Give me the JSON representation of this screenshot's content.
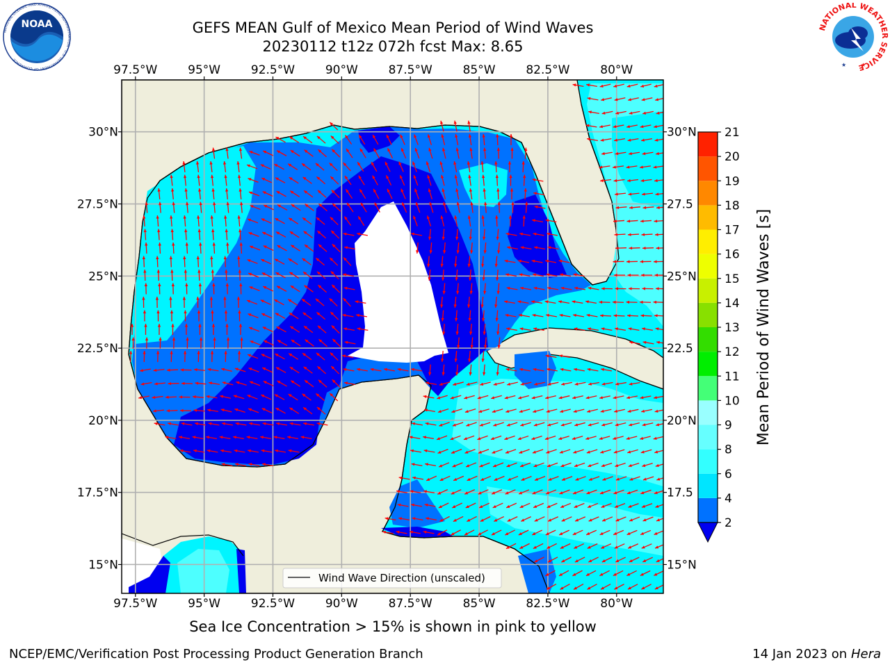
{
  "header": {
    "title_line1": "GEFS MEAN Gulf of Mexico Mean Period of Wind Waves",
    "title_line2": "20230112 t12z 072h fcst   Max: 8.65"
  },
  "logos": {
    "left": "noaa-logo",
    "right": "nws-logo",
    "left_text": "NOAA",
    "left_ring_text": "NATIONAL OCEANIC AND ATMOSPHERIC ADMINISTRATION · U.S. DEPARTMENT OF COMMERCE",
    "right_ring_text": "NATIONAL WEATHER SERVICE"
  },
  "map": {
    "lon_labels": [
      "97.5°W",
      "95°W",
      "92.5°W",
      "90°W",
      "87.5°W",
      "85°W",
      "82.5°W",
      "80°W"
    ],
    "lat_labels": [
      "30°N",
      "27.5°N",
      "25°N",
      "22.5°N",
      "20°N",
      "17.5°N",
      "15°N"
    ],
    "lat_labels_right": [
      "30°N",
      "27.5",
      "25°N",
      "22.5",
      "20°N",
      "17.5",
      "15°N"
    ],
    "lon_range": [
      -98.0,
      -78.3
    ],
    "lat_range": [
      14.0,
      31.8
    ],
    "legend_label": "Wind Wave Direction (unscaled)"
  },
  "colorbar": {
    "label": "Mean Period of Wind Waves [s]",
    "ticks": [
      "2",
      "4",
      "6",
      "8",
      "9",
      "10",
      "11",
      "12",
      "13",
      "14",
      "15",
      "16",
      "17",
      "18",
      "19",
      "20",
      "21"
    ],
    "colors": [
      "#0072ff",
      "#00e5ff",
      "#33ffff",
      "#66ffff",
      "#99ffff",
      "#44ff77",
      "#00ee00",
      "#33dd00",
      "#88e000",
      "#c8f000",
      "#eeff00",
      "#ffee00",
      "#ffbb00",
      "#ff8800",
      "#ff5500",
      "#ff2200",
      "#ff0000"
    ],
    "under_color": "#0000f0"
  },
  "colors": {
    "land": "#efeedc",
    "period_2_4": "#0072ff",
    "period_under": "#0000f0",
    "period_4_6": "#00f5ff",
    "period_6_8": "#4dffff",
    "arrow": "#ff0000"
  },
  "subnote": "Sea Ice Concentration > 15% is shown in pink to yellow",
  "footer": {
    "left": "NCEP/EMC/Verification Post Processing Product Generation Branch",
    "right_date": "14 Jan 2023 on ",
    "right_machine": "Hera"
  }
}
